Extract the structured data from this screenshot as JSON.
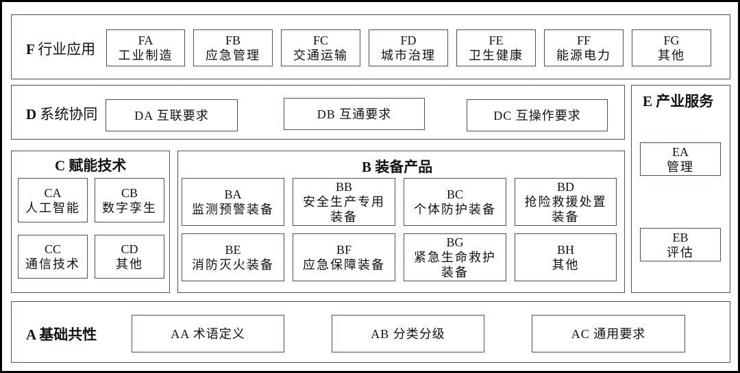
{
  "sections": {
    "F": {
      "letter": "F",
      "title": "行业应用",
      "items": [
        {
          "code": "FA",
          "name": "工业制造"
        },
        {
          "code": "FB",
          "name": "应急管理"
        },
        {
          "code": "FC",
          "name": "交通运输"
        },
        {
          "code": "FD",
          "name": "城市治理"
        },
        {
          "code": "FE",
          "name": "卫生健康"
        },
        {
          "code": "FF",
          "name": "能源电力"
        },
        {
          "code": "FG",
          "name": "其他"
        }
      ]
    },
    "D": {
      "letter": "D",
      "title": "系统协同",
      "items": [
        {
          "code": "DA",
          "name": "互联要求"
        },
        {
          "code": "DB",
          "name": "互通要求"
        },
        {
          "code": "DC",
          "name": "互操作要求"
        }
      ]
    },
    "E": {
      "letter": "E",
      "title": "产业服务",
      "items": [
        {
          "code": "EA",
          "name": "管理"
        },
        {
          "code": "EB",
          "name": "评估"
        }
      ]
    },
    "C": {
      "letter": "C",
      "title": "赋能技术",
      "items": [
        {
          "code": "CA",
          "name": "人工智能"
        },
        {
          "code": "CB",
          "name": "数字孪生"
        },
        {
          "code": "CC",
          "name": "通信技术"
        },
        {
          "code": "CD",
          "name": "其他"
        }
      ]
    },
    "B": {
      "letter": "B",
      "title": "装备产品",
      "items": [
        {
          "code": "BA",
          "name": "监测预警装备"
        },
        {
          "code": "BB",
          "name": "安全生产专用装备"
        },
        {
          "code": "BC",
          "name": "个体防护装备"
        },
        {
          "code": "BD",
          "name": "抢险救援处置装备"
        },
        {
          "code": "BE",
          "name": "消防灭火装备"
        },
        {
          "code": "BF",
          "name": "应急保障装备"
        },
        {
          "code": "BG",
          "name": "紧急生命救护装备"
        },
        {
          "code": "BH",
          "name": "其他"
        }
      ]
    },
    "A": {
      "letter": "A",
      "title": "基础共性",
      "items": [
        {
          "code": "AA",
          "name": "术语定义"
        },
        {
          "code": "AB",
          "name": "分类分级"
        },
        {
          "code": "AC",
          "name": "通用要求"
        }
      ]
    }
  },
  "colors": {
    "border": "#44506e",
    "frame": "#000000"
  }
}
